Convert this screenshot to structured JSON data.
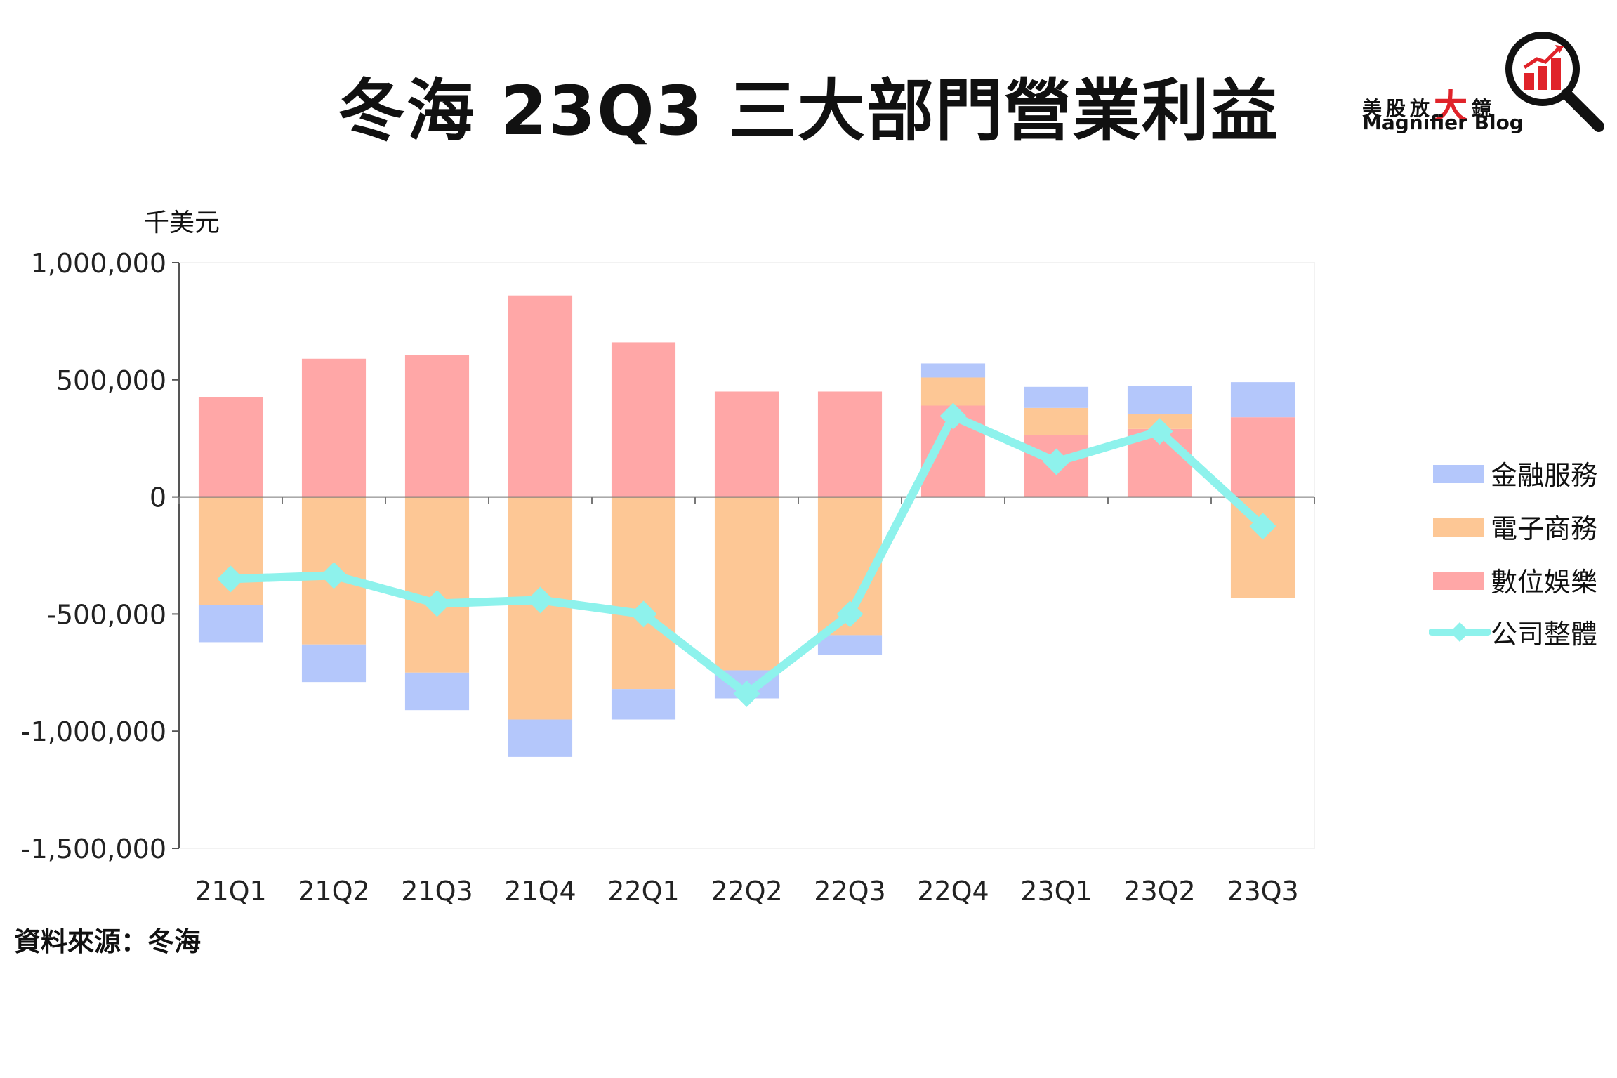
{
  "title": "冬海 23Q3 三大部門營業利益",
  "logo": {
    "zh_before": "美股放",
    "zh_big": "大",
    "zh_after": "鏡",
    "en": "Magnifier Blog"
  },
  "unit_label": "千美元",
  "source": "資料來源：冬海",
  "colors": {
    "finance": "#b4c7fb",
    "ecommerce": "#fdc795",
    "entertainment": "#ffa7a7",
    "total": "#8ef2ec",
    "accent": "#e0232a"
  },
  "chart_data": {
    "type": "bar",
    "stacked": true,
    "categories": [
      "21Q1",
      "21Q2",
      "21Q3",
      "21Q4",
      "22Q1",
      "22Q2",
      "22Q3",
      "22Q4",
      "23Q1",
      "23Q2",
      "23Q3"
    ],
    "series": [
      {
        "name": "數位娛樂",
        "key": "entertainment",
        "values": [
          425000,
          590000,
          605000,
          860000,
          660000,
          450000,
          450000,
          390000,
          265000,
          290000,
          340000
        ]
      },
      {
        "name": "電子商務",
        "key": "ecommerce",
        "values": [
          -460000,
          -630000,
          -750000,
          -950000,
          -820000,
          -740000,
          -590000,
          120000,
          115000,
          65000,
          -430000
        ]
      },
      {
        "name": "金融服務",
        "key": "finance",
        "values": [
          -160000,
          -160000,
          -160000,
          -160000,
          -130000,
          -120000,
          -85000,
          60000,
          90000,
          120000,
          150000
        ]
      },
      {
        "name": "公司整體",
        "key": "total",
        "type": "line",
        "values": [
          -350000,
          -335000,
          -455000,
          -440000,
          -500000,
          -840000,
          -500000,
          345000,
          150000,
          280000,
          -125000
        ]
      }
    ],
    "ylim": [
      -1500000,
      1000000
    ],
    "yticks": [
      "1,000,000",
      "500,000",
      "0",
      "-500,000",
      "-1,000,000",
      "-1,500,000"
    ],
    "ytick_values": [
      1000000,
      500000,
      0,
      -500000,
      -1000000,
      -1500000
    ],
    "grid": false,
    "legend_position": "right"
  },
  "legend": [
    {
      "label": "金融服務",
      "key": "finance"
    },
    {
      "label": "電子商務",
      "key": "ecommerce"
    },
    {
      "label": "數位娛樂",
      "key": "entertainment"
    },
    {
      "label": "公司整體",
      "key": "total"
    }
  ]
}
